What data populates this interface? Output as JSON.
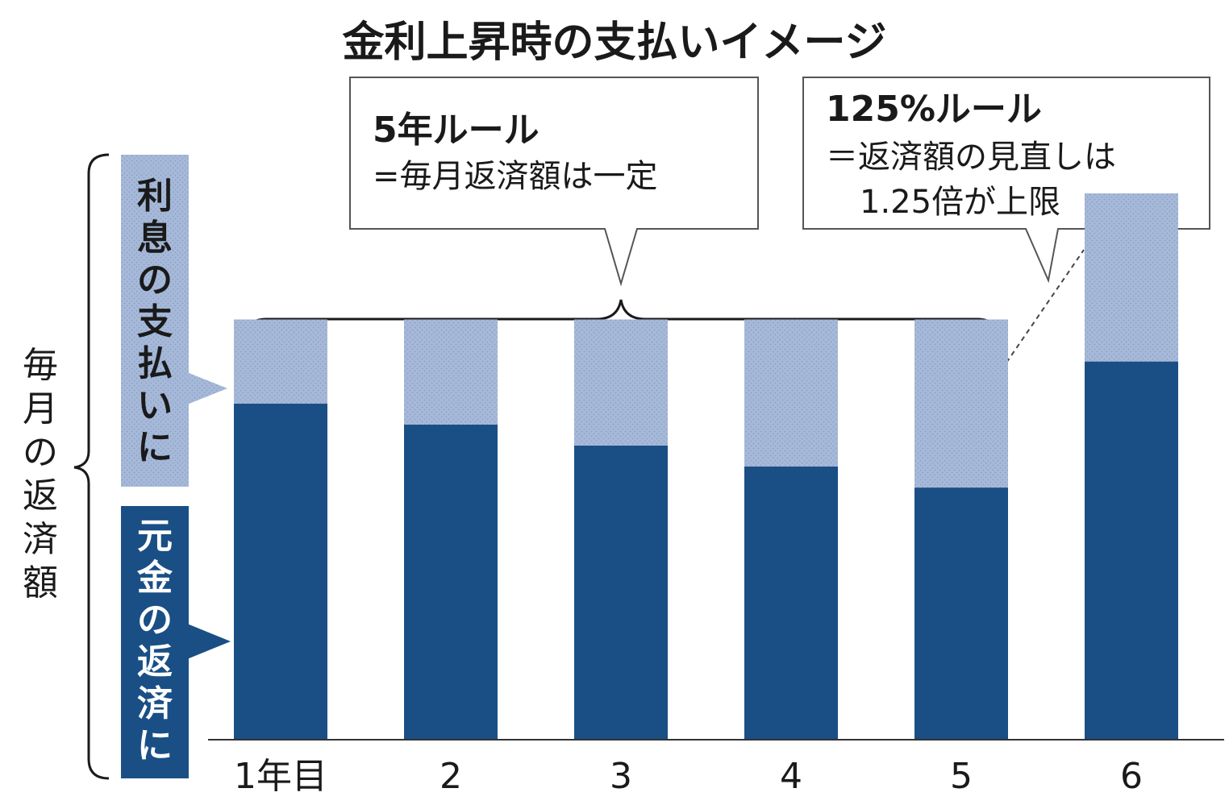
{
  "title": "金利上昇時の支払いイメージ",
  "colors": {
    "principal": "#1a4f85",
    "interest": "#a7b9d8",
    "interest_pattern_dot": "#8aa0c8",
    "text": "#1a1a1a"
  },
  "y_axis_label": "毎月の返済額",
  "legend": {
    "interest_label": "利息の支払いに",
    "principal_label": "元金の返済に"
  },
  "callouts": {
    "five_year": {
      "heading": "5年ルール",
      "body": "=毎月返済額は一定"
    },
    "one25": {
      "heading": "125%ルール",
      "body_line1": "＝返済額の見直しは",
      "body_line2": "1.25倍が上限"
    }
  },
  "chart_data": {
    "type": "bar",
    "stacked": true,
    "categories": [
      "1年目",
      "2",
      "3",
      "4",
      "5",
      "6"
    ],
    "series": [
      {
        "name": "元金の返済に",
        "values": [
          80,
          75,
          70,
          65,
          60,
          90
        ]
      },
      {
        "name": "利息の支払いに",
        "values": [
          20,
          25,
          30,
          35,
          40,
          40
        ]
      }
    ],
    "ylim": [
      0,
      130
    ],
    "grid": false,
    "legend_position": "left"
  }
}
